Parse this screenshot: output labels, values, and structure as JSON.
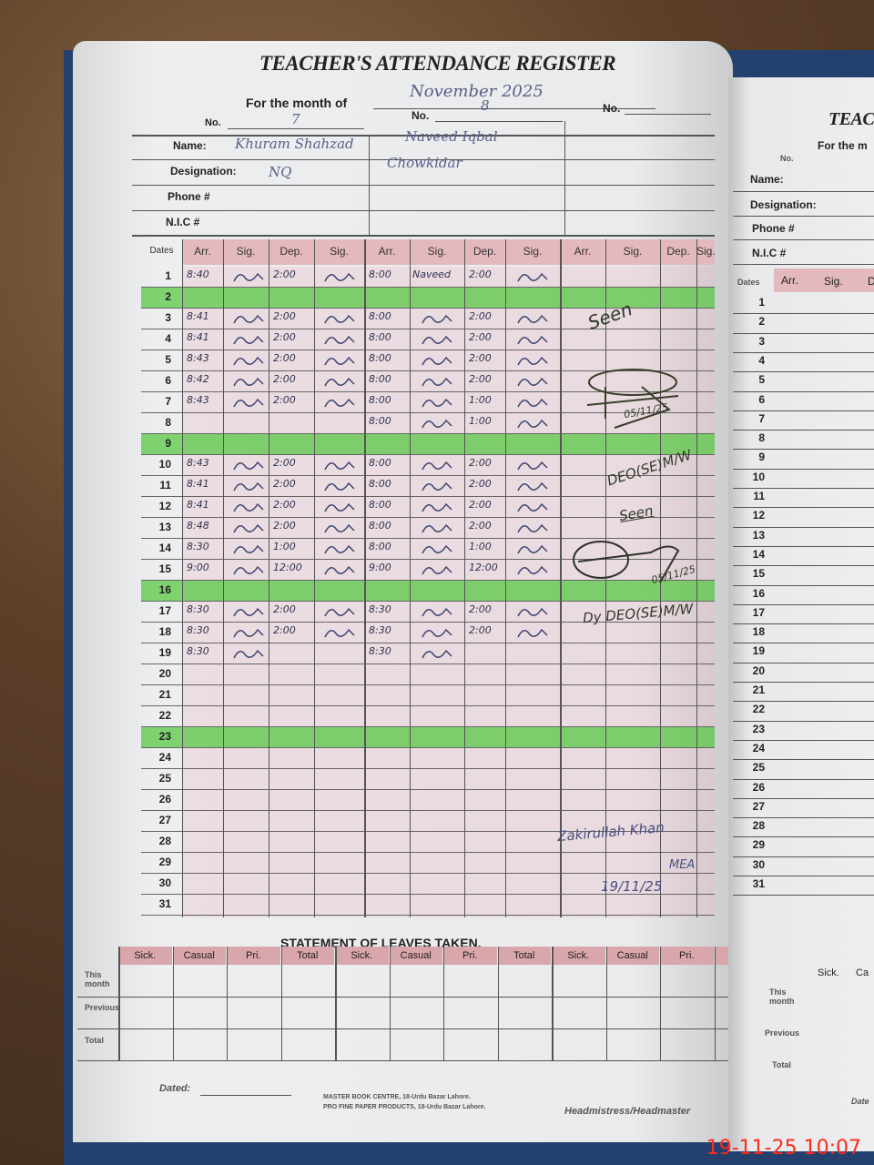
{
  "register": {
    "title": "TEACHER'S ATTENDANCE REGISTER",
    "month_label": "For the month of",
    "month_value": "November 2025",
    "no_label": "No.",
    "columns_no": [
      "7",
      "8",
      ""
    ],
    "name_label": "Name:",
    "designation_label": "Designation:",
    "phone_label": "Phone #",
    "nic_label": "N.I.C #",
    "teachers": [
      {
        "name": "Khuram Shahzad",
        "designation": "NQ"
      },
      {
        "name": "Naveed Iqbal",
        "designation": "Chowkidar"
      }
    ],
    "header": {
      "dates": "Dates",
      "arr": "Arr.",
      "sig": "Sig.",
      "dep": "Dep."
    },
    "holiday_dates": [
      2,
      9,
      16,
      23
    ],
    "entries": [
      {
        "date": 1,
        "t1_arr": "8:40",
        "t1_dep": "2:00",
        "t2_arr": "8:00",
        "t2_sig": "Naveed",
        "t2_dep": "2:00"
      },
      {
        "date": 3,
        "t1_arr": "8:41",
        "t1_dep": "2:00",
        "t2_arr": "8:00",
        "t2_dep": "2:00"
      },
      {
        "date": 4,
        "t1_arr": "8:41",
        "t1_dep": "2:00",
        "t2_arr": "8:00",
        "t2_dep": "2:00"
      },
      {
        "date": 5,
        "t1_arr": "8:43",
        "t1_dep": "2:00",
        "t2_arr": "8:00",
        "t2_dep": "2:00"
      },
      {
        "date": 6,
        "t1_arr": "8:42",
        "t1_dep": "2:00",
        "t2_arr": "8:00",
        "t2_dep": "2:00"
      },
      {
        "date": 7,
        "t1_arr": "8:43",
        "t1_dep": "2:00",
        "t2_arr": "8:00",
        "t2_dep": "1:00"
      },
      {
        "date": 8,
        "t2_arr": "8:00",
        "t2_dep": "1:00"
      },
      {
        "date": 10,
        "t1_arr": "8:43",
        "t1_dep": "2:00",
        "t2_arr": "8:00",
        "t2_dep": "2:00"
      },
      {
        "date": 11,
        "t1_arr": "8:41",
        "t1_dep": "2:00",
        "t2_arr": "8:00",
        "t2_dep": "2:00"
      },
      {
        "date": 12,
        "t1_arr": "8:41",
        "t1_dep": "2:00",
        "t2_arr": "8:00",
        "t2_dep": "2:00"
      },
      {
        "date": 13,
        "t1_arr": "8:48",
        "t1_dep": "2:00",
        "t2_arr": "8:00",
        "t2_dep": "2:00"
      },
      {
        "date": 14,
        "t1_arr": "8:30",
        "t1_dep": "1:00",
        "t2_arr": "8:00",
        "t2_dep": "1:00"
      },
      {
        "date": 15,
        "t1_arr": "9:00",
        "t1_dep": "12:00",
        "t2_arr": "9:00",
        "t2_dep": "12:00"
      },
      {
        "date": 17,
        "t1_arr": "8:30",
        "t1_dep": "2:00",
        "t2_arr": "8:30",
        "t2_dep": "2:00"
      },
      {
        "date": 18,
        "t1_arr": "8:30",
        "t1_dep": "2:00",
        "t2_arr": "8:30",
        "t2_dep": "2:00"
      },
      {
        "date": 19,
        "t1_arr": "8:30",
        "t2_arr": "8:30"
      }
    ],
    "annotations": {
      "seen_1": "Seen",
      "stamp_date_1": "05/11/25",
      "deo_1": "DEO(SE)M/W",
      "seen_2": "Seen",
      "stamp_date_2": "05/11/25",
      "deo_2": "Dy DEO(SE)M/W",
      "visitor_name": "Zakirullah Khan",
      "visitor_title": "MEA",
      "visitor_date": "19/11/25"
    },
    "leaves": {
      "title": "STATEMENT OF LEAVES TAKEN.",
      "columns": [
        "Sick.",
        "Casual",
        "Pri.",
        "Total"
      ],
      "rows": [
        "This month",
        "Previous",
        "Total"
      ]
    },
    "footer": {
      "dated_label": "Dated:",
      "publisher_1": "MASTER BOOK CENTRE, 18-Urdu Bazar Lahore.",
      "publisher_2": "PRO FINE PAPER PRODUCTS, 18-Urdu Bazar Lahore.",
      "signatory": "Headmistress/Headmaster"
    }
  },
  "right_page": {
    "title": "TEAC",
    "month_label": "For the m",
    "no_label": "No.",
    "name_label": "Name:",
    "designation_label": "Designation:",
    "phone_label": "Phone #",
    "nic_label": "N.I.C #",
    "dates_label": "Dates",
    "arr_label": "Arr.",
    "sig_label": "Sig.",
    "dep_label": "D",
    "leave_cols": [
      "Sick.",
      "Ca"
    ],
    "leave_rows": [
      "This month",
      "Previous",
      "Total"
    ],
    "dated_label": "Date"
  },
  "camera_timestamp": "19-11-25 10:07"
}
